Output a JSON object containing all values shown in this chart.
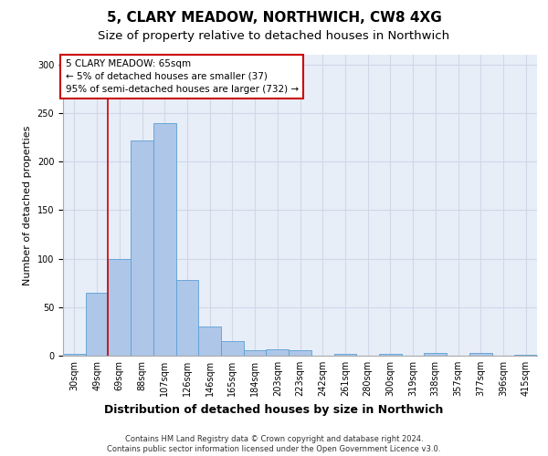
{
  "title": "5, CLARY MEADOW, NORTHWICH, CW8 4XG",
  "subtitle": "Size of property relative to detached houses in Northwich",
  "xlabel": "Distribution of detached houses by size in Northwich",
  "ylabel": "Number of detached properties",
  "bin_labels": [
    "30sqm",
    "49sqm",
    "69sqm",
    "88sqm",
    "107sqm",
    "126sqm",
    "146sqm",
    "165sqm",
    "184sqm",
    "203sqm",
    "223sqm",
    "242sqm",
    "261sqm",
    "280sqm",
    "300sqm",
    "319sqm",
    "338sqm",
    "357sqm",
    "377sqm",
    "396sqm",
    "415sqm"
  ],
  "bar_heights": [
    2,
    65,
    100,
    222,
    240,
    78,
    30,
    15,
    6,
    7,
    6,
    0,
    2,
    0,
    2,
    0,
    3,
    0,
    3,
    0,
    1
  ],
  "bar_color": "#aec6e8",
  "bar_edge_color": "#5a9fd4",
  "annotation_box_text": "5 CLARY MEADOW: 65sqm\n← 5% of detached houses are smaller (37)\n95% of semi-detached houses are larger (732) →",
  "annotation_box_color": "#ffffff",
  "annotation_box_edge_color": "#cc0000",
  "vline_x_index": 1.5,
  "vline_color": "#cc0000",
  "ylim": [
    0,
    310
  ],
  "yticks": [
    0,
    50,
    100,
    150,
    200,
    250,
    300
  ],
  "grid_color": "#d0d8e8",
  "bg_color": "#e8eef8",
  "footer_text": "Contains HM Land Registry data © Crown copyright and database right 2024.\nContains public sector information licensed under the Open Government Licence v3.0.",
  "title_fontsize": 11,
  "subtitle_fontsize": 9.5,
  "xlabel_fontsize": 9,
  "ylabel_fontsize": 8,
  "tick_fontsize": 7,
  "footer_fontsize": 6,
  "annot_fontsize": 7.5
}
